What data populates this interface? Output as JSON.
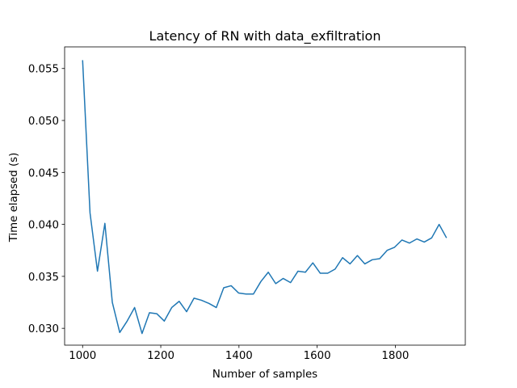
{
  "chart_data": {
    "type": "line",
    "title": "Latency of RN with data_exfiltration",
    "xlabel": "Number of samples",
    "ylabel": "Time elapsed (s)",
    "xlim": [
      954,
      1979
    ],
    "ylim": [
      0.02838,
      0.05708
    ],
    "xticks": [
      1000,
      1200,
      1400,
      1600,
      1800
    ],
    "yticks": [
      0.03,
      0.035,
      0.04,
      0.045,
      0.05,
      0.055
    ],
    "xtick_labels": [
      "1000",
      "1200",
      "1400",
      "1600",
      "1800"
    ],
    "ytick_labels": [
      "0.030",
      "0.035",
      "0.040",
      "0.045",
      "0.050",
      "0.055"
    ],
    "grid": false,
    "line_color": "#1f77b4",
    "series": [
      {
        "x": [
          1000,
          1019,
          1038,
          1057,
          1076,
          1095,
          1114,
          1133,
          1152,
          1171,
          1190,
          1209,
          1228,
          1247,
          1266,
          1285,
          1304,
          1323,
          1342,
          1361,
          1380,
          1399,
          1418,
          1437,
          1456,
          1475,
          1494,
          1513,
          1532,
          1551,
          1570,
          1589,
          1608,
          1627,
          1646,
          1665,
          1684,
          1703,
          1722,
          1741,
          1760,
          1779,
          1798,
          1817,
          1836,
          1855,
          1874,
          1893,
          1912,
          1931
        ],
        "values": [
          0.0558,
          0.0411,
          0.0355,
          0.0401,
          0.0325,
          0.0296,
          0.0307,
          0.032,
          0.0295,
          0.0315,
          0.0314,
          0.0307,
          0.032,
          0.0326,
          0.0316,
          0.0329,
          0.0327,
          0.0324,
          0.032,
          0.0339,
          0.0341,
          0.0334,
          0.0333,
          0.0333,
          0.0345,
          0.0354,
          0.0343,
          0.0348,
          0.0344,
          0.0355,
          0.0354,
          0.0363,
          0.0353,
          0.0353,
          0.0357,
          0.0368,
          0.0362,
          0.037,
          0.0362,
          0.0366,
          0.0367,
          0.0375,
          0.0378,
          0.0385,
          0.0382,
          0.0386,
          0.0383,
          0.0387,
          0.04,
          0.0387
        ]
      }
    ]
  }
}
